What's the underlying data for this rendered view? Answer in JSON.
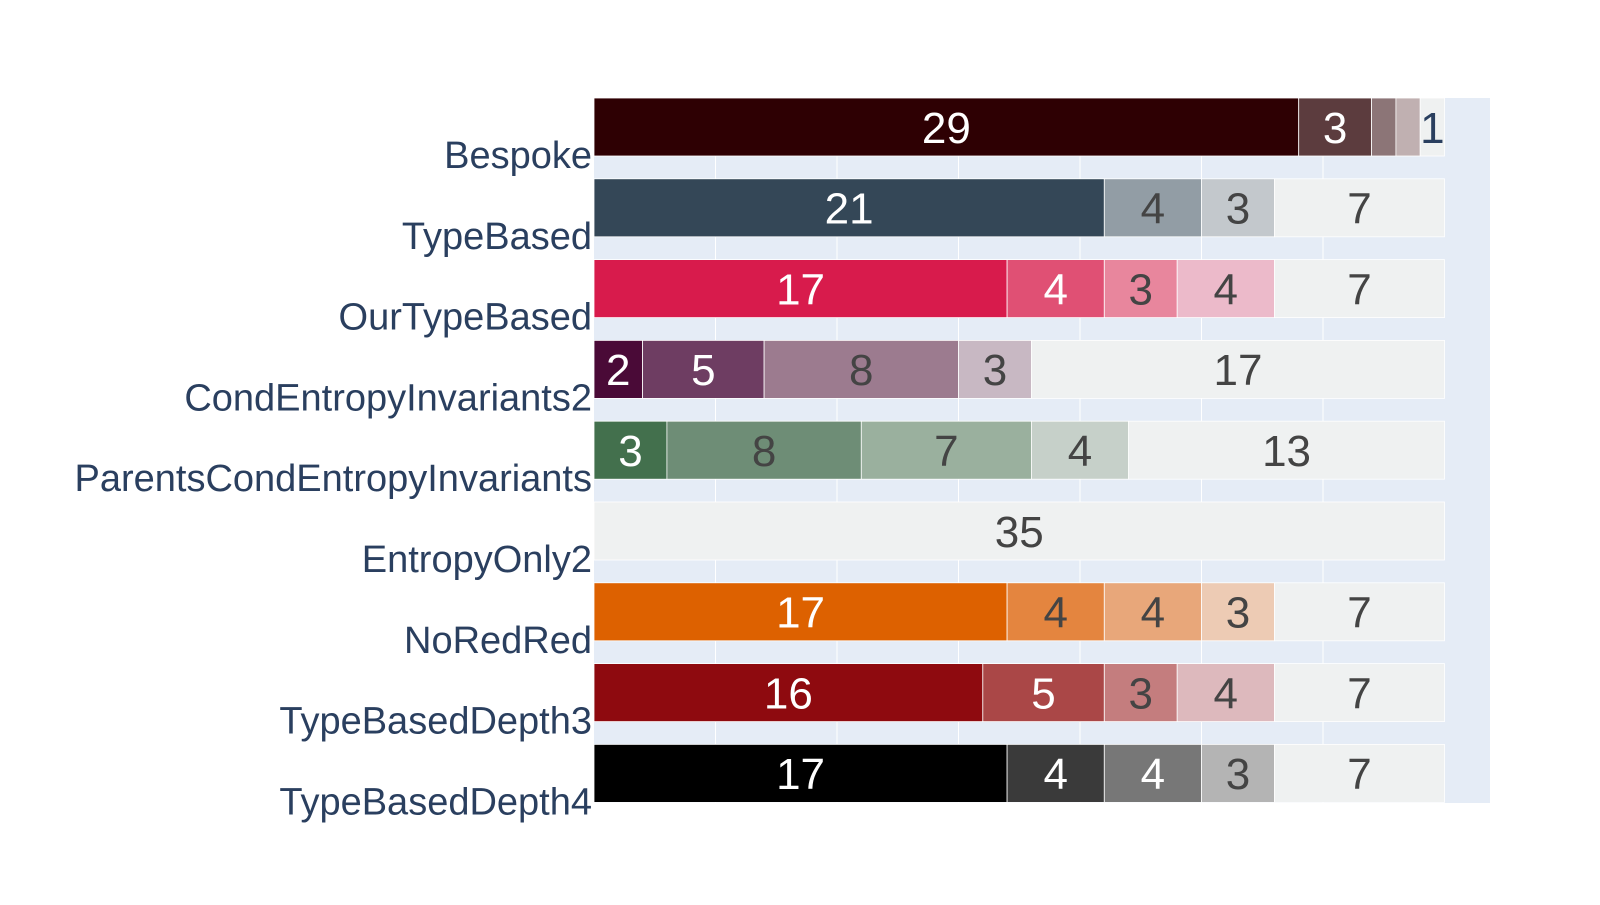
{
  "chart_data": {
    "type": "bar",
    "orientation": "horizontal",
    "barmode": "stack",
    "grid": true,
    "plot_background": "#E5ECF6",
    "label_color": "#2A3F5F",
    "categories": [
      "Bespoke",
      "TypeBased",
      "OurTypeBased",
      "CondEntropyInvariants2",
      "ParentsCondEntropyInvariants",
      "EntropyOnly2",
      "NoRedRed",
      "TypeBasedDepth3",
      "TypeBasedDepth4"
    ],
    "rows": [
      {
        "category": "Bespoke",
        "segments": [
          {
            "value": 29,
            "color": "#2E0003",
            "label": "29",
            "text_color": "#FFFFFF"
          },
          {
            "value": 3,
            "color": "#5C3C3E",
            "label": "3",
            "text_color": "#FFFFFF"
          },
          {
            "value": 1,
            "color": "#8C7577",
            "label": "",
            "text_color": "#FFFFFF"
          },
          {
            "value": 1,
            "color": "#C0B0B1",
            "label": "",
            "text_color": "#FFFFFF"
          },
          {
            "value": 1,
            "color": "#EFF1F1",
            "label": "1",
            "text_color": "#2A3F5F"
          }
        ]
      },
      {
        "category": "TypeBased",
        "segments": [
          {
            "value": 21,
            "color": "#344757",
            "label": "21",
            "text_color": "#FFFFFF"
          },
          {
            "value": 4,
            "color": "#929DA5",
            "label": "4",
            "text_color": "#444444"
          },
          {
            "value": 3,
            "color": "#C3C8CC",
            "label": "3",
            "text_color": "#444444"
          },
          {
            "value": 7,
            "color": "#EFF1F1",
            "label": "7",
            "text_color": "#444444"
          }
        ]
      },
      {
        "category": "OurTypeBased",
        "segments": [
          {
            "value": 17,
            "color": "#D81B4C",
            "label": "17",
            "text_color": "#FFFFFF"
          },
          {
            "value": 4,
            "color": "#E05074",
            "label": "4",
            "text_color": "#FFFFFF"
          },
          {
            "value": 3,
            "color": "#E8869D",
            "label": "3",
            "text_color": "#444444"
          },
          {
            "value": 4,
            "color": "#ECBACA",
            "label": "4",
            "text_color": "#444444"
          },
          {
            "value": 7,
            "color": "#EFF1F1",
            "label": "7",
            "text_color": "#444444"
          }
        ]
      },
      {
        "category": "CondEntropyInvariants2",
        "segments": [
          {
            "value": 2,
            "color": "#4A0A37",
            "label": "2",
            "text_color": "#FFFFFF"
          },
          {
            "value": 5,
            "color": "#6E3D62",
            "label": "5",
            "text_color": "#FFFFFF"
          },
          {
            "value": 8,
            "color": "#9C7B8F",
            "label": "8",
            "text_color": "#444444"
          },
          {
            "value": 3,
            "color": "#C8B8C3",
            "label": "3",
            "text_color": "#444444"
          },
          {
            "value": 17,
            "color": "#EFF1F1",
            "label": "17",
            "text_color": "#444444"
          }
        ]
      },
      {
        "category": "ParentsCondEntropyInvariants",
        "segments": [
          {
            "value": 3,
            "color": "#43704D",
            "label": "3",
            "text_color": "#FFFFFF"
          },
          {
            "value": 8,
            "color": "#6E8D76",
            "label": "8",
            "text_color": "#444444"
          },
          {
            "value": 7,
            "color": "#9AB09E",
            "label": "7",
            "text_color": "#444444"
          },
          {
            "value": 4,
            "color": "#C6D0C9",
            "label": "4",
            "text_color": "#444444"
          },
          {
            "value": 13,
            "color": "#EFF1F1",
            "label": "13",
            "text_color": "#444444"
          }
        ]
      },
      {
        "category": "EntropyOnly2",
        "segments": [
          {
            "value": 35,
            "color": "#EFF1F1",
            "label": "35",
            "text_color": "#444444"
          }
        ]
      },
      {
        "category": "NoRedRed",
        "segments": [
          {
            "value": 17,
            "color": "#DD6100",
            "label": "17",
            "text_color": "#FFFFFF"
          },
          {
            "value": 4,
            "color": "#E4853F",
            "label": "4",
            "text_color": "#444444"
          },
          {
            "value": 4,
            "color": "#E8A77A",
            "label": "4",
            "text_color": "#444444"
          },
          {
            "value": 3,
            "color": "#EDCBB4",
            "label": "3",
            "text_color": "#444444"
          },
          {
            "value": 7,
            "color": "#EFF1F1",
            "label": "7",
            "text_color": "#444444"
          }
        ]
      },
      {
        "category": "TypeBasedDepth3",
        "segments": [
          {
            "value": 16,
            "color": "#8E0A0F",
            "label": "16",
            "text_color": "#FFFFFF"
          },
          {
            "value": 5,
            "color": "#AA4747",
            "label": "5",
            "text_color": "#FFFFFF"
          },
          {
            "value": 3,
            "color": "#C47D7E",
            "label": "3",
            "text_color": "#444444"
          },
          {
            "value": 4,
            "color": "#DDB9BD",
            "label": "4",
            "text_color": "#444444"
          },
          {
            "value": 7,
            "color": "#EFF1F1",
            "label": "7",
            "text_color": "#444444"
          }
        ]
      },
      {
        "category": "TypeBasedDepth4",
        "segments": [
          {
            "value": 17,
            "color": "#000000",
            "label": "17",
            "text_color": "#FFFFFF"
          },
          {
            "value": 4,
            "color": "#3A3A3A",
            "label": "4",
            "text_color": "#FFFFFF"
          },
          {
            "value": 4,
            "color": "#777777",
            "label": "4",
            "text_color": "#FFFFFF"
          },
          {
            "value": 3,
            "color": "#B4B4B4",
            "label": "3",
            "text_color": "#444444"
          },
          {
            "value": 7,
            "color": "#EFF1F1",
            "label": "7",
            "text_color": "#444444"
          }
        ]
      }
    ],
    "xlim": [
      0,
      35
    ],
    "xlabel": "",
    "ylabel": "",
    "title": ""
  }
}
